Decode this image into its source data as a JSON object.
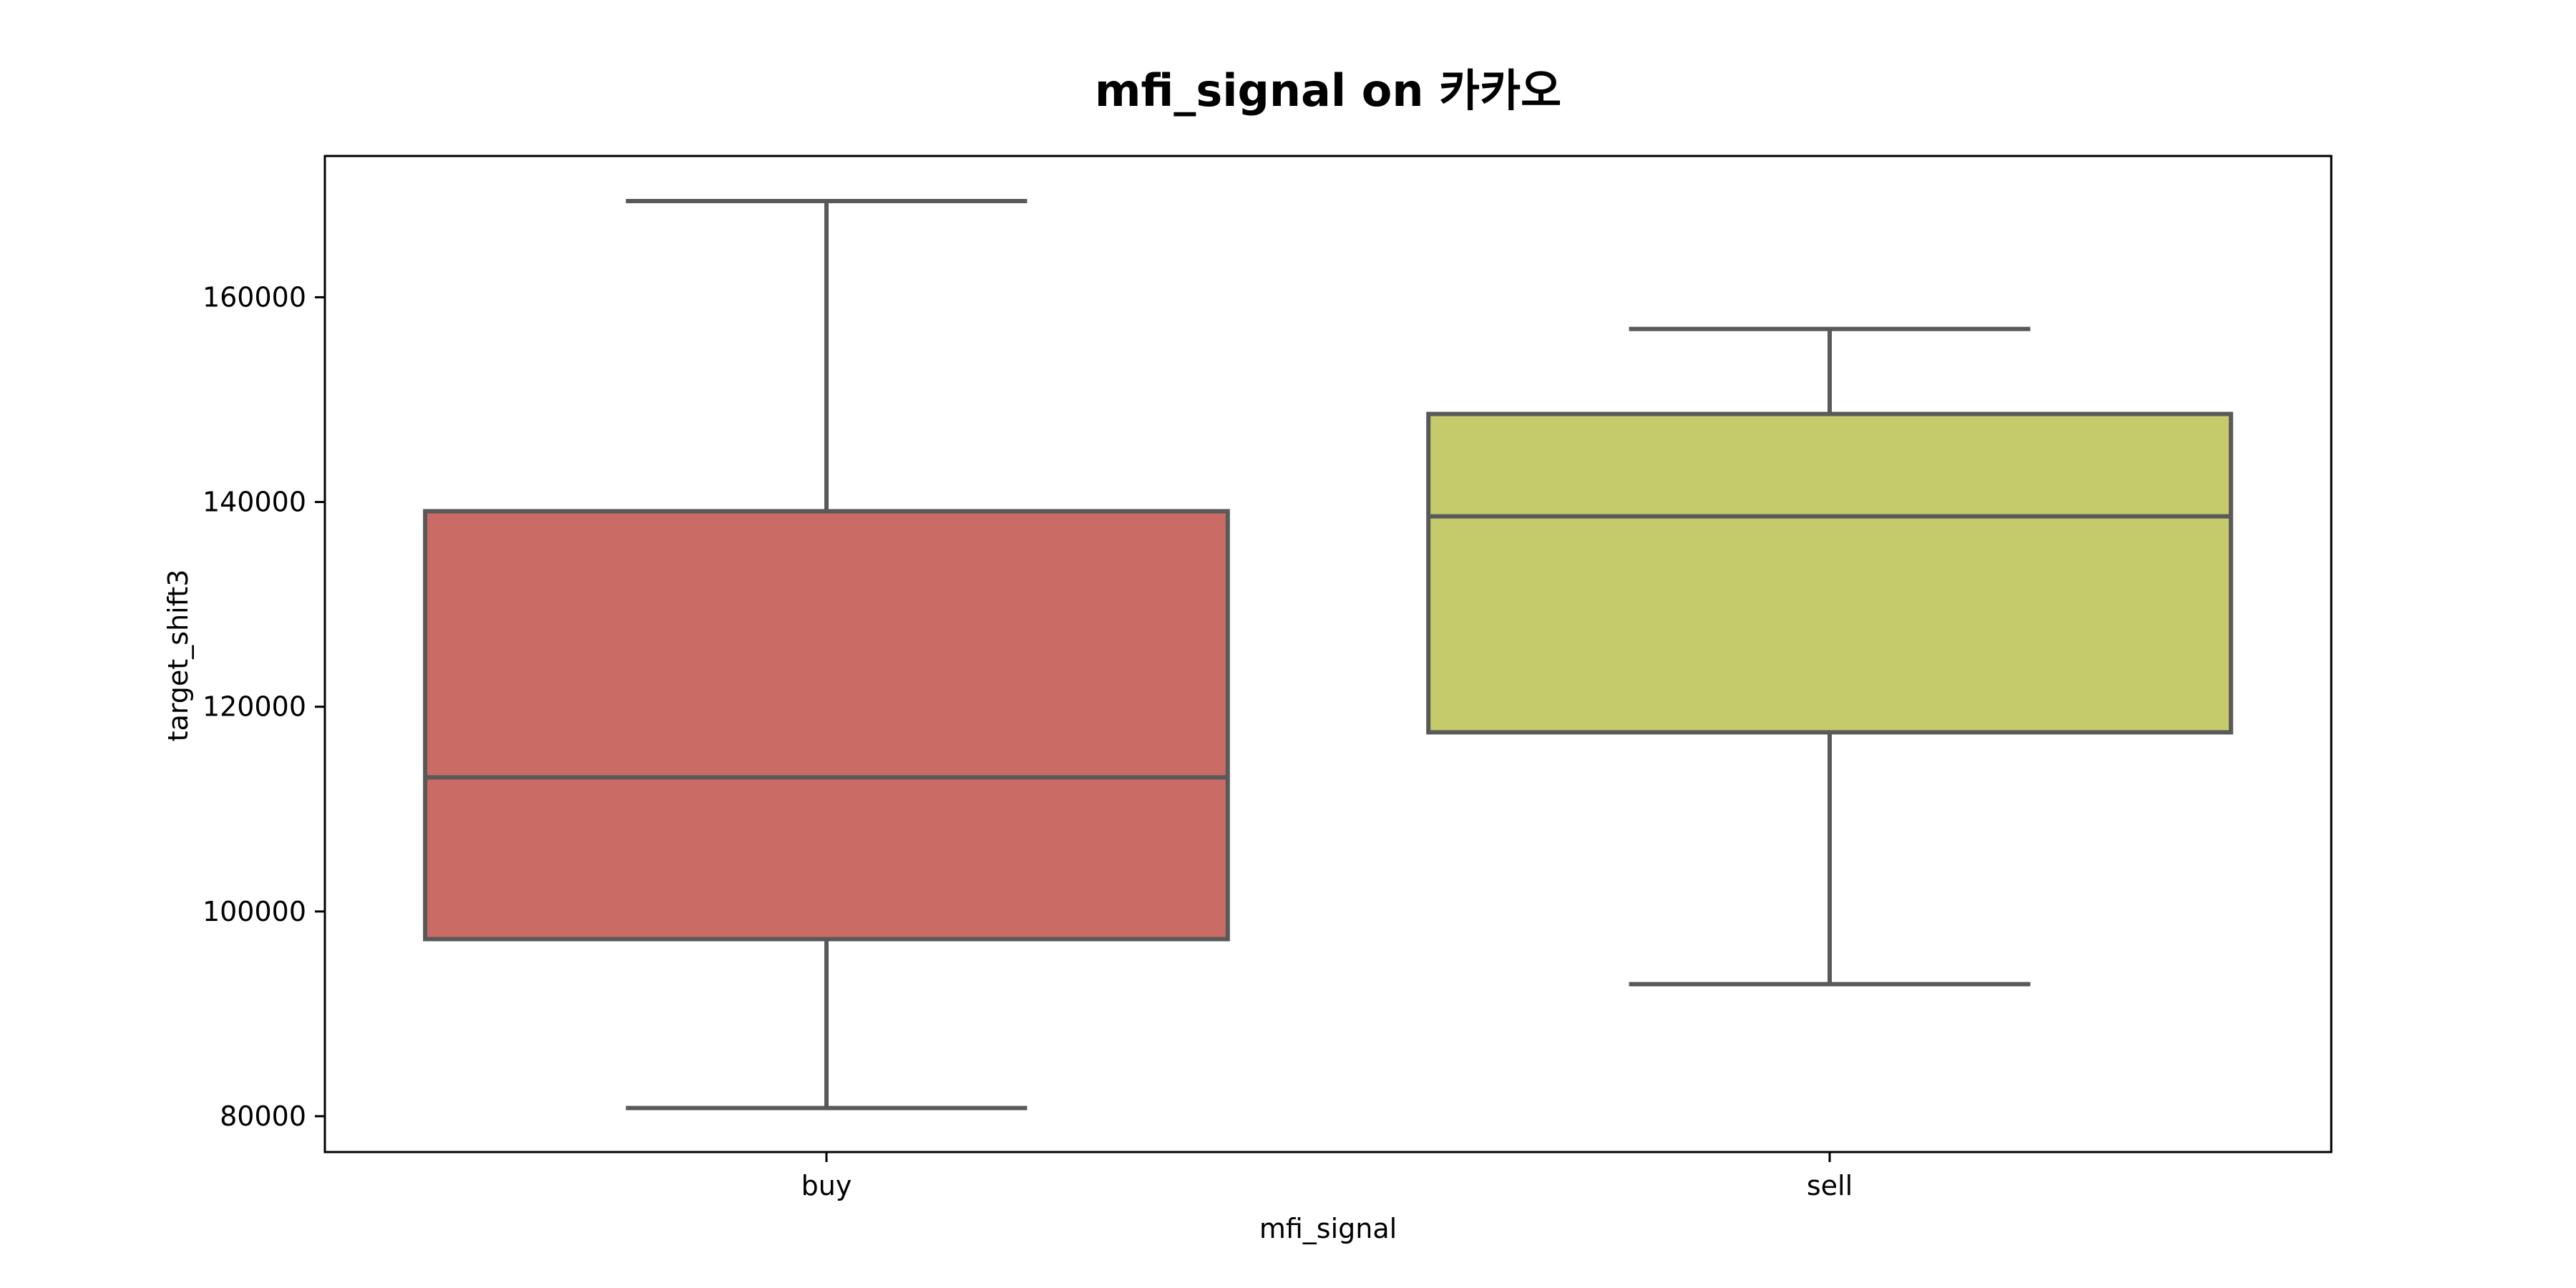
{
  "chart_data": {
    "type": "box",
    "title": "mfi_signal on 카카오",
    "xlabel": "mfi_signal",
    "ylabel": "target_shift3",
    "ylim": [
      76500,
      173800
    ],
    "yticks": [
      80000,
      100000,
      120000,
      140000,
      160000
    ],
    "ytick_labels": [
      "80000",
      "100000",
      "120000",
      "140000",
      "160000"
    ],
    "grid": false,
    "categories": [
      "buy",
      "sell"
    ],
    "boxes": [
      {
        "category": "buy",
        "whisker_low": 80800,
        "q1": 97300,
        "median": 113100,
        "q3": 139100,
        "whisker_high": 169400,
        "color": "#cb6b65"
      },
      {
        "category": "sell",
        "whisker_low": 92900,
        "q1": 117500,
        "median": 138600,
        "q3": 148600,
        "whisker_high": 156900,
        "color": "#c5cb6a"
      }
    ]
  }
}
